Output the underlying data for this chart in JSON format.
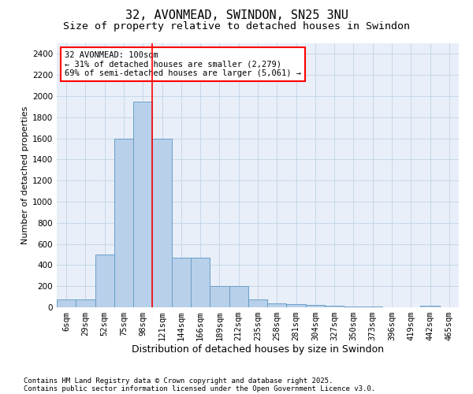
{
  "title1": "32, AVONMEAD, SWINDON, SN25 3NU",
  "title2": "Size of property relative to detached houses in Swindon",
  "xlabel": "Distribution of detached houses by size in Swindon",
  "ylabel": "Number of detached properties",
  "categories": [
    "6sqm",
    "29sqm",
    "52sqm",
    "75sqm",
    "98sqm",
    "121sqm",
    "144sqm",
    "166sqm",
    "189sqm",
    "212sqm",
    "235sqm",
    "258sqm",
    "281sqm",
    "304sqm",
    "327sqm",
    "350sqm",
    "373sqm",
    "396sqm",
    "419sqm",
    "442sqm",
    "465sqm"
  ],
  "values": [
    75,
    75,
    500,
    1600,
    1950,
    1600,
    470,
    470,
    200,
    200,
    75,
    35,
    30,
    20,
    15,
    10,
    5,
    0,
    0,
    15,
    0
  ],
  "bar_color": "#B8D0EA",
  "bar_edge_color": "#6A9EC8",
  "vline_pos": 4.5,
  "vline_color": "red",
  "annotation_text": "32 AVONMEAD: 100sqm\n← 31% of detached houses are smaller (2,279)\n69% of semi-detached houses are larger (5,061) →",
  "annotation_box_color": "white",
  "annotation_box_edge_color": "red",
  "ylim": [
    0,
    2500
  ],
  "yticks": [
    0,
    200,
    400,
    600,
    800,
    1000,
    1200,
    1400,
    1600,
    1800,
    2000,
    2200,
    2400
  ],
  "grid_color": "#C0D4E8",
  "bg_color": "#E8EFF8",
  "footer1": "Contains HM Land Registry data © Crown copyright and database right 2025.",
  "footer2": "Contains public sector information licensed under the Open Government Licence v3.0.",
  "title1_fontsize": 11,
  "title2_fontsize": 9.5,
  "xlabel_fontsize": 9,
  "ylabel_fontsize": 8,
  "tick_fontsize": 7.5,
  "annot_fontsize": 7.5,
  "footer_fontsize": 6.5
}
